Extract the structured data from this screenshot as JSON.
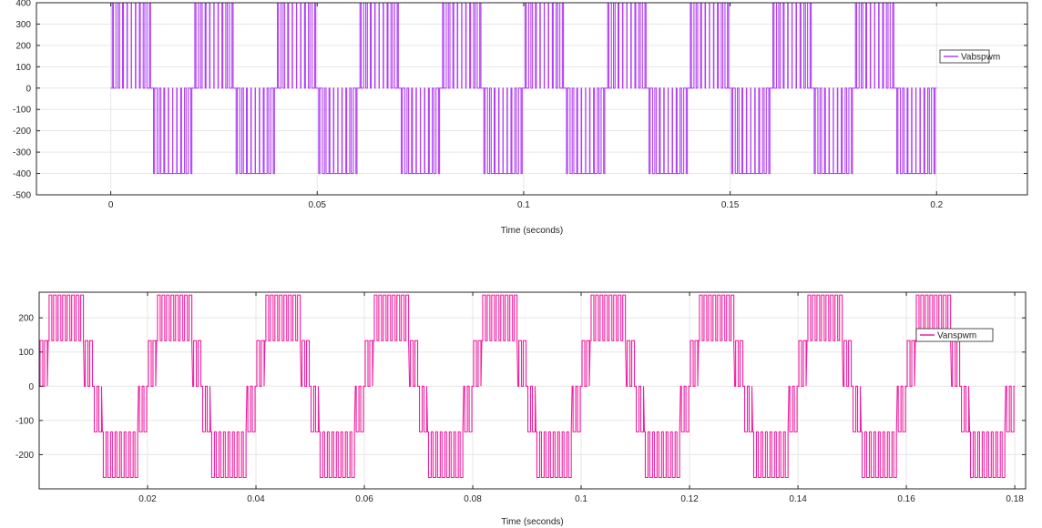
{
  "chart_data": [
    {
      "type": "line",
      "title": "",
      "xlabel": "Time (seconds)",
      "ylabel": "",
      "xlim": [
        -0.018,
        0.222
      ],
      "ylim": [
        -500,
        400
      ],
      "x_ticks": [
        0,
        0.05,
        0.1,
        0.15,
        0.2
      ],
      "x_tick_labels": [
        "0",
        "0.05",
        "0.1",
        "0.15",
        "0.2"
      ],
      "y_ticks": [
        400,
        300,
        200,
        100,
        0,
        -100,
        -200,
        -300,
        -400,
        -500
      ],
      "y_tick_labels": [
        "400",
        "300",
        "200",
        "100",
        "0",
        "-100",
        "-200",
        "-300",
        "-400",
        "-500"
      ],
      "grid": true,
      "legend_position": "right",
      "series": [
        {
          "name": "Vabspwm",
          "color": "#b040f5",
          "fundamental_hz": 50,
          "t_start": 0,
          "t_end": 0.2,
          "levels": [
            -400,
            0,
            400
          ],
          "carrier_pulses_per_half_cycle": 10
        }
      ]
    },
    {
      "type": "line",
      "title": "",
      "xlabel": "Time (seconds)",
      "ylabel": "",
      "xlim": [
        0,
        0.182
      ],
      "ylim": [
        -300,
        275
      ],
      "x_ticks": [
        0.02,
        0.04,
        0.06,
        0.08,
        0.1,
        0.12,
        0.14,
        0.16,
        0.18
      ],
      "x_tick_labels": [
        "0.02",
        "0.04",
        "0.06",
        "0.08",
        "0.1",
        "0.12",
        "0.14",
        "0.16",
        "0.18"
      ],
      "y_ticks": [
        200,
        100,
        0,
        -100,
        -200
      ],
      "y_tick_labels": [
        "200",
        "100",
        "0",
        "-100",
        "-200"
      ],
      "grid": true,
      "legend_position": "right",
      "series": [
        {
          "name": "Vanspwm",
          "color": "#f01ea0",
          "fundamental_hz": 50,
          "t_start": 0,
          "t_end": 0.182,
          "levels": [
            -266.7,
            -133.3,
            0,
            133.3,
            266.7
          ],
          "carrier_pulses_per_half_cycle": 12
        }
      ]
    }
  ]
}
